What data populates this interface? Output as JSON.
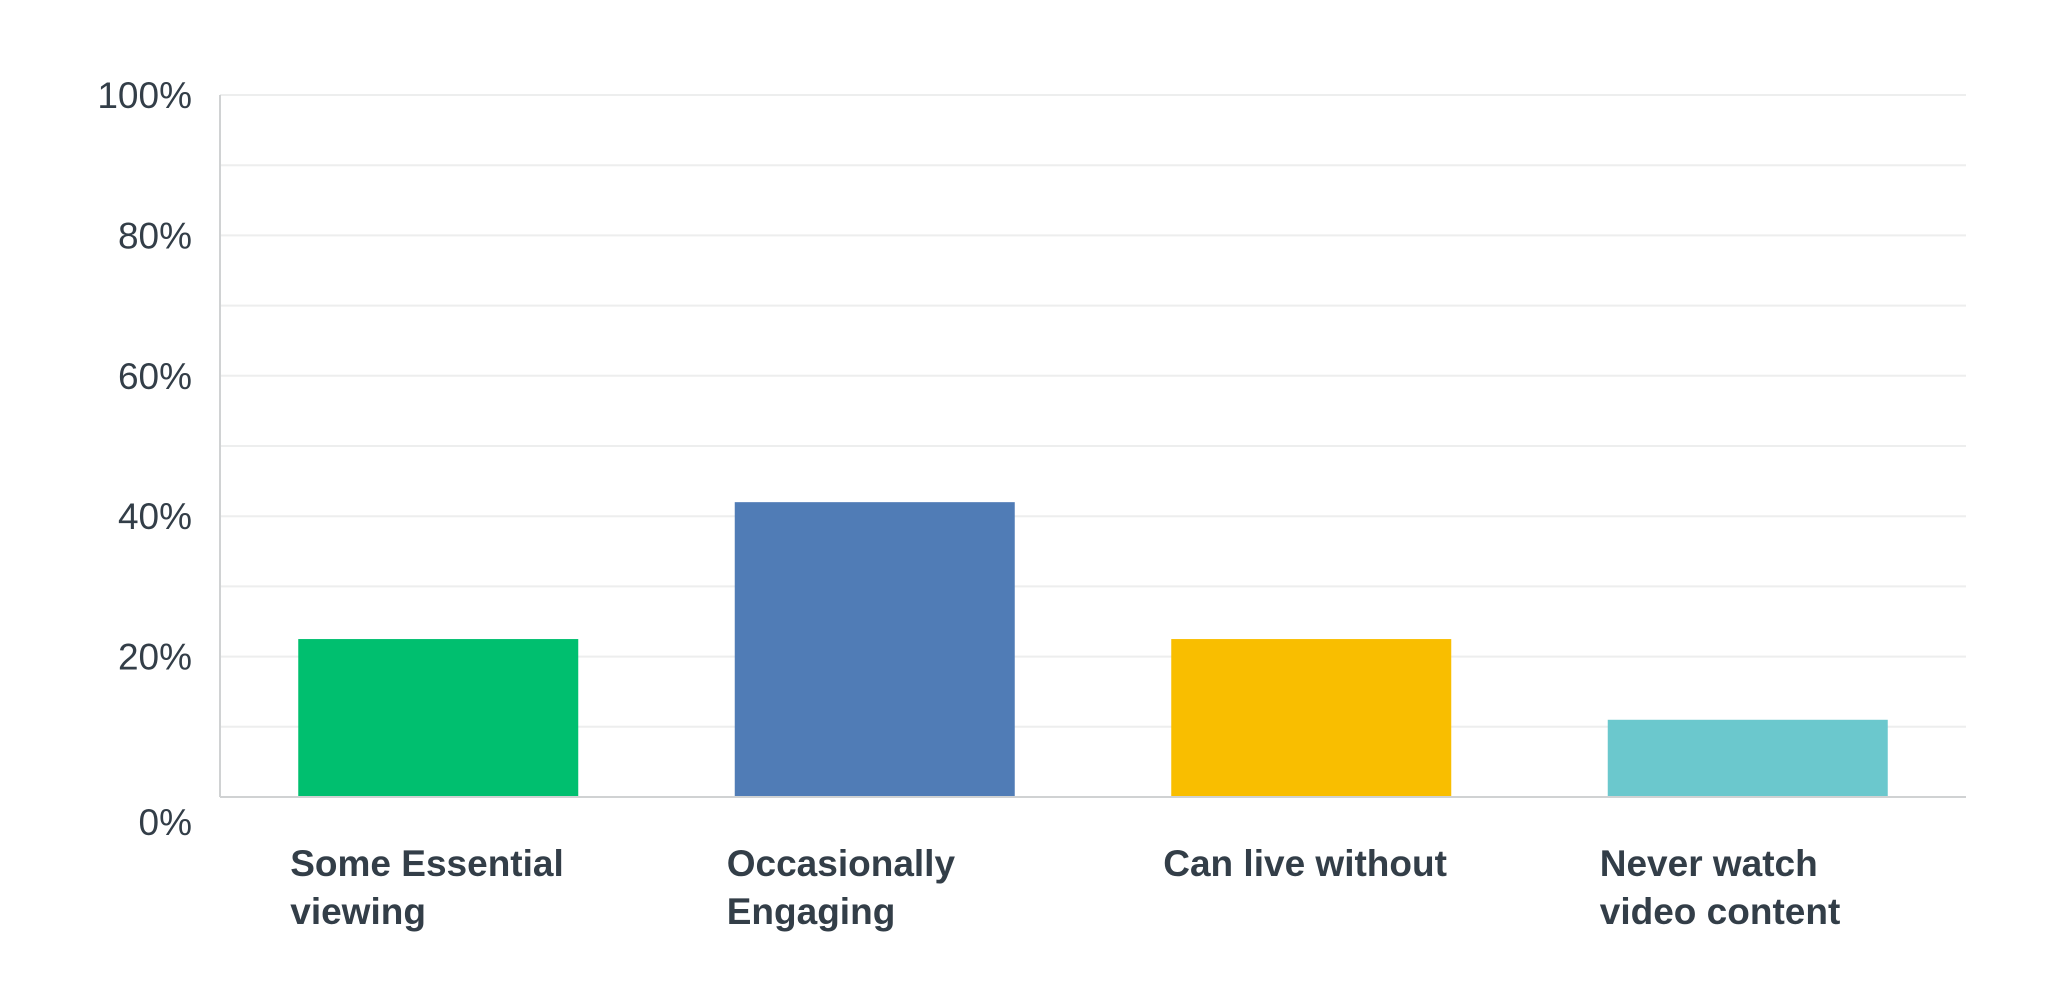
{
  "chart_data": {
    "type": "bar",
    "title": "",
    "xlabel": "",
    "ylabel": "",
    "categories": [
      [
        "Some Essential",
        "viewing"
      ],
      [
        "Occasionally",
        "Engaging"
      ],
      [
        "Can live without"
      ],
      [
        "Never watch",
        "video content"
      ]
    ],
    "values": [
      22.5,
      42,
      22.5,
      11
    ],
    "ylim": [
      0,
      100
    ],
    "yticks": [
      0,
      20,
      40,
      60,
      80,
      100
    ],
    "ytick_labels": [
      "0%",
      "20%",
      "40%",
      "60%",
      "80%",
      "100%"
    ],
    "minor_gridlines": [
      10,
      30,
      50,
      70,
      90
    ],
    "grid": true,
    "legend": "none",
    "colors": [
      "#00bf6f",
      "#507cb6",
      "#f9be00",
      "#6bc8cd"
    ],
    "text_color": "#333e48",
    "grid_color": "#edeeee",
    "axis_color": "#d0d2d3"
  }
}
